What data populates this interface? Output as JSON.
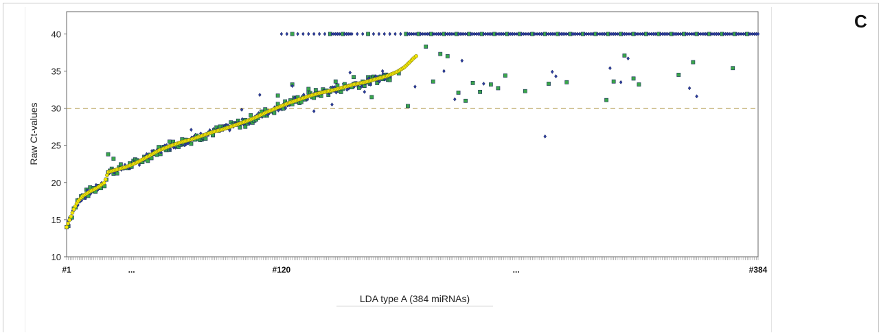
{
  "panel_label": "C",
  "chart_data": {
    "type": "scatter",
    "title": "",
    "xlabel": "LDA type A (384 miRNAs)",
    "ylabel": "Raw Ct-values",
    "xlim": [
      1,
      384
    ],
    "ylim": [
      10,
      43
    ],
    "yticks": [
      10,
      15,
      20,
      25,
      30,
      35,
      40
    ],
    "xtick_labels": [
      {
        "pos": 1,
        "label": "#1"
      },
      {
        "pos": 37,
        "label": "..."
      },
      {
        "pos": 120,
        "label": "#120"
      },
      {
        "pos": 250,
        "label": "..."
      },
      {
        "pos": 384,
        "label": "#384"
      }
    ],
    "reference_line": {
      "y": 30,
      "style": "dashed",
      "color": "#b8a25a"
    },
    "grid": false,
    "colors": {
      "sorted_reference": "#f2e600",
      "sample_squares": "#3aa64a",
      "sample_diamonds": "#2e3fa3",
      "outline": "#1a2a5a"
    },
    "series": [
      {
        "marker": "circle",
        "color": "#f2e600",
        "description_points": "sorted reference curve, miRNA #1 to ~#195",
        "values": [
          [
            1,
            14.0
          ],
          [
            3,
            15.2
          ],
          [
            5,
            16.4
          ],
          [
            7,
            17.4
          ],
          [
            10,
            18.2
          ],
          [
            14,
            18.8
          ],
          [
            18,
            19.3
          ],
          [
            22,
            20.0
          ],
          [
            24,
            21.4
          ],
          [
            28,
            21.7
          ],
          [
            34,
            22.1
          ],
          [
            40,
            22.7
          ],
          [
            46,
            23.5
          ],
          [
            52,
            24.3
          ],
          [
            58,
            24.9
          ],
          [
            64,
            25.4
          ],
          [
            70,
            25.8
          ],
          [
            76,
            26.3
          ],
          [
            82,
            26.8
          ],
          [
            88,
            27.2
          ],
          [
            94,
            27.7
          ],
          [
            100,
            28.2
          ],
          [
            106,
            28.8
          ],
          [
            112,
            29.5
          ],
          [
            118,
            30.1
          ],
          [
            124,
            30.7
          ],
          [
            130,
            31.2
          ],
          [
            136,
            31.7
          ],
          [
            142,
            32.1
          ],
          [
            148,
            32.4
          ],
          [
            154,
            32.8
          ],
          [
            160,
            33.2
          ],
          [
            166,
            33.5
          ],
          [
            172,
            33.9
          ],
          [
            178,
            34.3
          ],
          [
            184,
            34.9
          ],
          [
            188,
            35.5
          ],
          [
            191,
            36.2
          ],
          [
            193,
            36.7
          ],
          [
            195,
            37.1
          ]
        ]
      },
      {
        "marker": "square",
        "color": "#3aa64a",
        "description_points": "replicate sample A scattered values",
        "values": [
          [
            24,
            23.8
          ],
          [
            27,
            23.2
          ],
          [
            58,
            25.5
          ],
          [
            82,
            26.4
          ],
          [
            100,
            27.5
          ],
          [
            110,
            29.0
          ],
          [
            118,
            31.7
          ],
          [
            126,
            33.2
          ],
          [
            135,
            32.6
          ],
          [
            150,
            33.6
          ],
          [
            160,
            34.2
          ],
          [
            170,
            31.5
          ],
          [
            180,
            33.8
          ],
          [
            185,
            34.7
          ],
          [
            190,
            30.3
          ],
          [
            200,
            38.3
          ],
          [
            204,
            33.6
          ],
          [
            208,
            37.3
          ],
          [
            212,
            37.0
          ],
          [
            218,
            32.1
          ],
          [
            222,
            31.0
          ],
          [
            226,
            33.4
          ],
          [
            230,
            32.2
          ],
          [
            236,
            33.2
          ],
          [
            240,
            32.7
          ],
          [
            244,
            34.4
          ],
          [
            255,
            32.3
          ],
          [
            268,
            33.3
          ],
          [
            278,
            33.5
          ],
          [
            300,
            31.1
          ],
          [
            304,
            33.6
          ],
          [
            310,
            37.1
          ],
          [
            315,
            34.0
          ],
          [
            318,
            33.2
          ],
          [
            340,
            34.5
          ],
          [
            348,
            36.2
          ],
          [
            370,
            35.4
          ]
        ]
      },
      {
        "marker": "diamond",
        "color": "#2e3fa3",
        "description_points": "replicate sample B scattered values",
        "values": [
          [
            2,
            14.8
          ],
          [
            12,
            18.6
          ],
          [
            70,
            27.1
          ],
          [
            98,
            29.8
          ],
          [
            108,
            31.8
          ],
          [
            126,
            33.0
          ],
          [
            138,
            29.6
          ],
          [
            148,
            30.5
          ],
          [
            158,
            34.8
          ],
          [
            166,
            32.2
          ],
          [
            176,
            35.0
          ],
          [
            194,
            32.9
          ],
          [
            210,
            35.0
          ],
          [
            216,
            31.2
          ],
          [
            220,
            36.4
          ],
          [
            232,
            33.3
          ],
          [
            266,
            26.2
          ],
          [
            270,
            34.9
          ],
          [
            272,
            34.3
          ],
          [
            302,
            35.4
          ],
          [
            308,
            33.5
          ],
          [
            312,
            36.7
          ],
          [
            346,
            32.7
          ],
          [
            350,
            31.6
          ]
        ]
      },
      {
        "marker": "diamond",
        "color": "#2e3fa3",
        "description_points": "undetermined (Ct = 40) values, miRNA #120 to #384",
        "values": [
          [
            120,
            40
          ],
          [
            384,
            40
          ]
        ]
      }
    ]
  }
}
